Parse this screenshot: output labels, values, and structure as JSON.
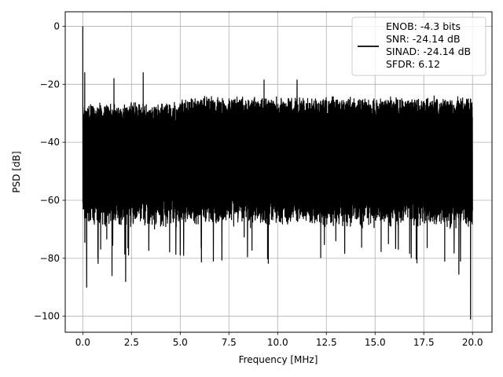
{
  "chart_data": {
    "type": "line",
    "title": "",
    "xlabel": "Frequency [MHz]",
    "ylabel": "PSD [dB]",
    "xlim": [
      -0.9,
      21.0
    ],
    "ylim": [
      -105.5,
      5.0
    ],
    "xticks": [
      0.0,
      2.5,
      5.0,
      7.5,
      10.0,
      12.5,
      15.0,
      17.5,
      20.0
    ],
    "xtick_labels": [
      "0.0",
      "2.5",
      "5.0",
      "7.5",
      "10.0",
      "12.5",
      "15.0",
      "17.5",
      "20.0"
    ],
    "yticks": [
      0,
      -20,
      -40,
      -60,
      -80,
      -100
    ],
    "ytick_labels": [
      "0",
      "−20",
      "−40",
      "−60",
      "−80",
      "−100"
    ],
    "grid": true,
    "legend_position": "top-right",
    "legend": [
      "ENOB: -4.3 bits",
      "SNR: -24.14 dB",
      "SINAD: -24.14 dB",
      "SFDR: 6.12"
    ],
    "line_color": "#000000",
    "series": [
      {
        "x_range": [
          0.0,
          20.0
        ],
        "envelope_upper_db": -24.5,
        "envelope_lower_db": -64,
        "spikes": [
          {
            "x": 0.0,
            "y": 0.0
          },
          {
            "x": 0.1,
            "y": -16
          },
          {
            "x": 0.2,
            "y": -90
          },
          {
            "x": 1.6,
            "y": -18
          },
          {
            "x": 3.1,
            "y": -16
          },
          {
            "x": 9.3,
            "y": -18.5
          },
          {
            "x": 11.0,
            "y": -18.5
          },
          {
            "x": 2.2,
            "y": -88
          },
          {
            "x": 1.5,
            "y": -86
          },
          {
            "x": 19.9,
            "y": -101
          },
          {
            "x": 19.3,
            "y": -85.5
          },
          {
            "x": 6.7,
            "y": -81
          }
        ]
      }
    ]
  }
}
